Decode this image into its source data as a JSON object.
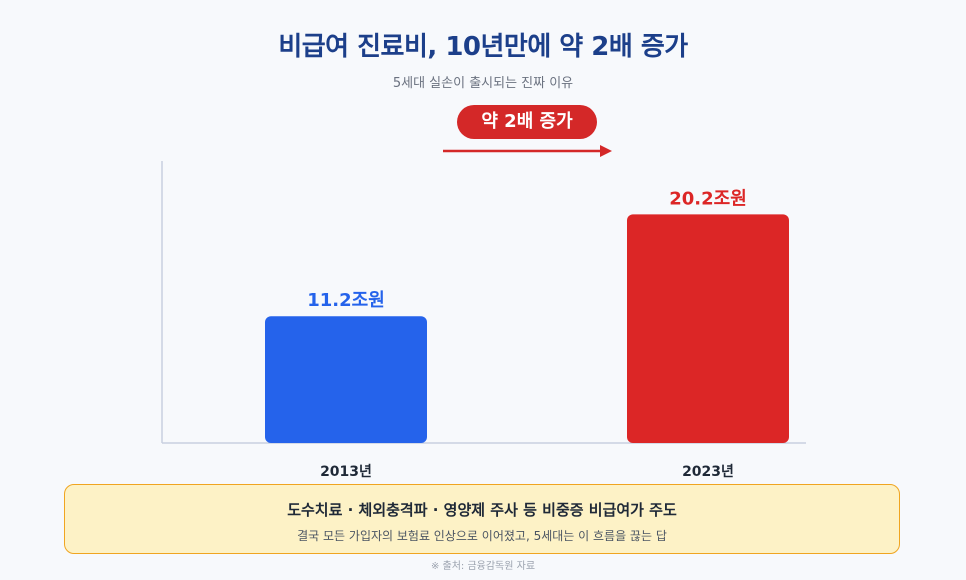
{
  "header": {
    "title": "비급여 진료비, 10년만에 약 2배 증가",
    "subtitle": "5세대 실손이 출시되는 진짜 이유"
  },
  "annotation": {
    "pill_label": "약 2배 증가"
  },
  "chart_data": {
    "type": "bar",
    "categories": [
      "2013년",
      "2023년"
    ],
    "values": [
      11.2,
      20.2
    ],
    "value_labels": [
      "11.2조원",
      "20.2조원"
    ],
    "colors": [
      "#2563eb",
      "#dc2626"
    ],
    "ylim": [
      0,
      25
    ],
    "grid": false,
    "legend": "none"
  },
  "callout": {
    "title": "도수치료 · 체외충격파 · 영양제 주사 등 비중증 비급여가 주도",
    "body": "결국 모든 가입자의 보험료 인상으로 이어졌고, 5세대는 이 흐름을 끊는 답"
  },
  "source": "※ 출처: 금융감독원 자료",
  "colors": {
    "title": "#1c3f8a",
    "accent_red": "#d42828",
    "callout_border": "#f0a520",
    "callout_bg": "#fdf2c6"
  }
}
